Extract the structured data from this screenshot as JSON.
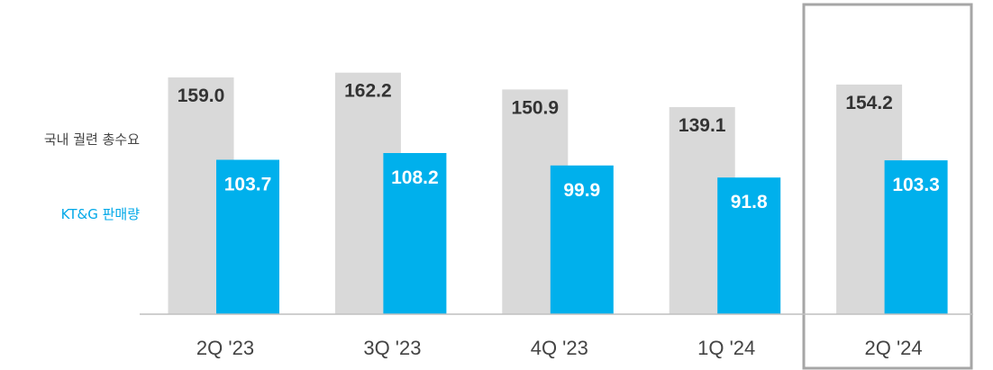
{
  "chart_data": {
    "type": "bar",
    "categories": [
      "2Q '23",
      "3Q '23",
      "4Q '23",
      "1Q '24",
      "2Q '24"
    ],
    "series": [
      {
        "name": "국내 궐련 총수요",
        "values": [
          159.0,
          162.2,
          150.9,
          139.1,
          154.2
        ],
        "color": "#d9d9d9",
        "label_color": "#333333"
      },
      {
        "name": "KT&G 판매량",
        "values": [
          103.7,
          108.2,
          99.9,
          91.8,
          103.3
        ],
        "color": "#00b0ec",
        "label_color": "#ffffff"
      }
    ],
    "legend_position": "left",
    "legend_colors": [
      "#444444",
      "#00a8e8"
    ],
    "highlighted_category": "2Q '24",
    "highlight_color": "#a6a6a6",
    "grid": false
  }
}
